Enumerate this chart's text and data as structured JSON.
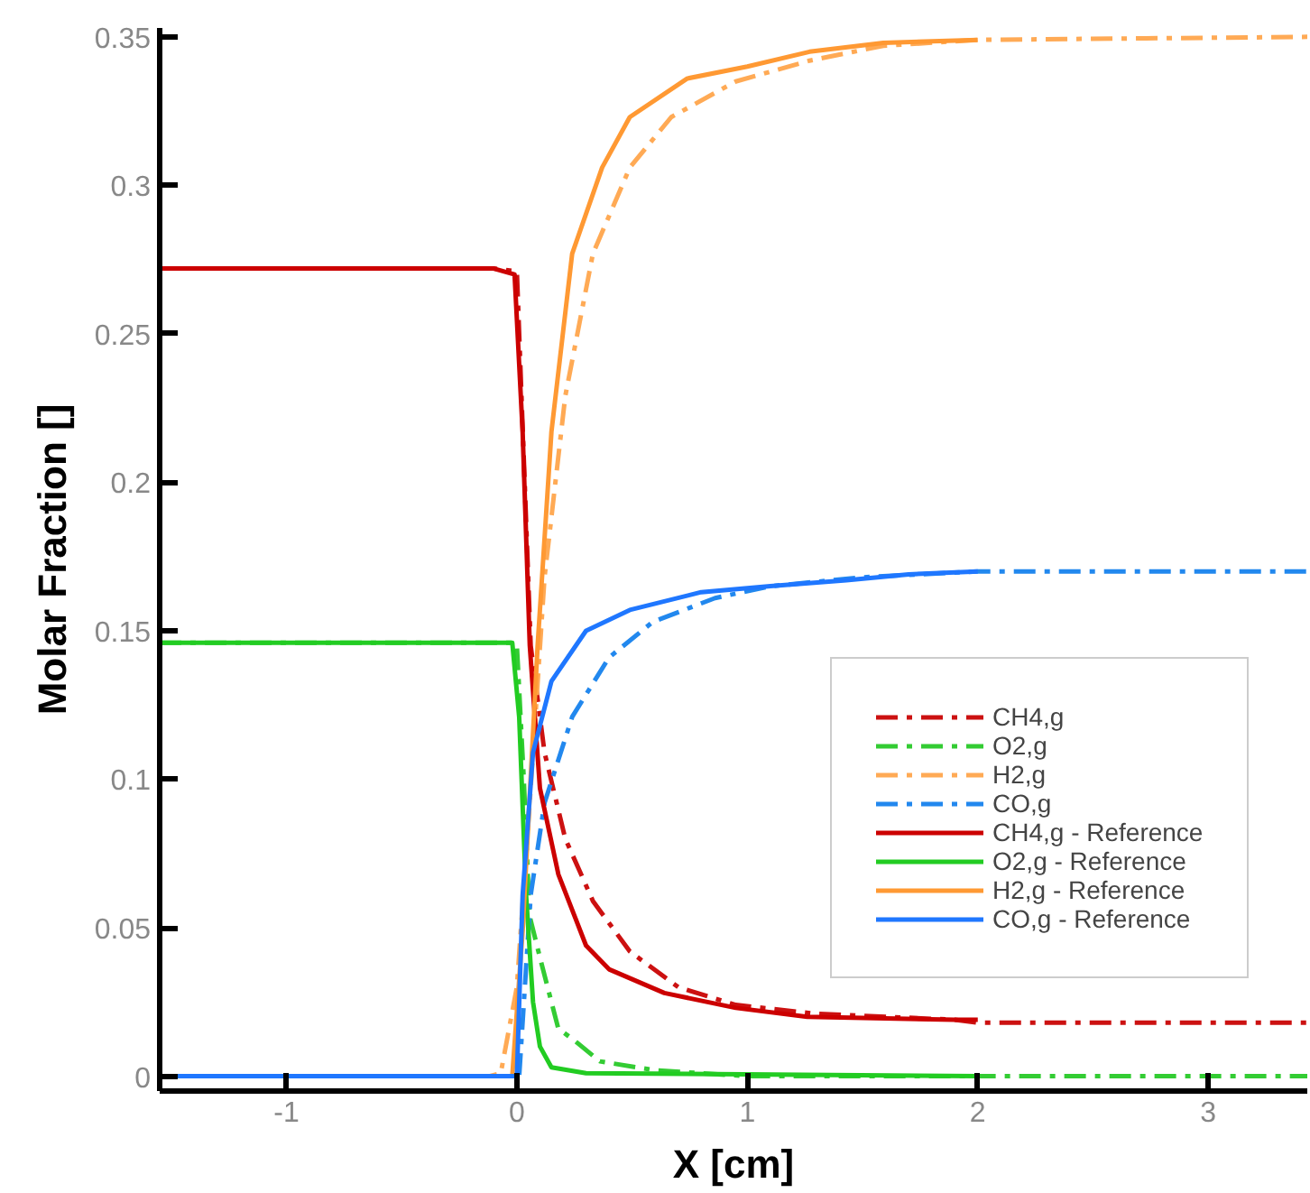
{
  "chart_data": {
    "type": "line",
    "xlabel": "X [cm]",
    "ylabel": "Molar Fraction []",
    "xlim": [
      -1.55,
      3.43
    ],
    "ylim": [
      -0.005,
      0.353
    ],
    "xticks": [
      -1,
      0,
      1,
      2,
      3
    ],
    "yticks": [
      0,
      0.05,
      0.1,
      0.15,
      0.2,
      0.25,
      0.3,
      0.35
    ],
    "grid": false,
    "legend": "bottom right",
    "marker": "none",
    "series": [
      {
        "name": "CH4,g",
        "color": "#cc1111",
        "line_style": "dashdot",
        "x": [
          -1.55,
          -0.1,
          0,
          0.06,
          0.12,
          0.21,
          0.33,
          0.49,
          0.7,
          0.95,
          1.3,
          1.9,
          2.0,
          3.43
        ],
        "values": [
          0.272,
          0.272,
          0.271,
          0.145,
          0.109,
          0.08,
          0.059,
          0.042,
          0.03,
          0.024,
          0.021,
          0.019,
          0.018,
          0.018
        ]
      },
      {
        "name": "O2,g",
        "color": "#33cc33",
        "line_style": "dashdot",
        "x": [
          -1.55,
          -0.02,
          0,
          0.03,
          0.055,
          0.1,
          0.18,
          0.25,
          0.36,
          0.6,
          1.0,
          3.43
        ],
        "values": [
          0.146,
          0.146,
          0.145,
          0.1,
          0.054,
          0.04,
          0.016,
          0.012,
          0.005,
          0.002,
          0,
          0
        ]
      },
      {
        "name": "H2,g",
        "color": "#ffaa55",
        "line_style": "dashdot",
        "x": [
          -1.55,
          -0.12,
          -0.07,
          0,
          0.06,
          0.12,
          0.21,
          0.33,
          0.49,
          0.67,
          0.95,
          1.27,
          1.59,
          2.0,
          3.43
        ],
        "values": [
          0,
          0,
          0.001,
          0.03,
          0.097,
          0.168,
          0.229,
          0.277,
          0.306,
          0.323,
          0.335,
          0.342,
          0.347,
          0.349,
          0.35
        ]
      },
      {
        "name": "CO,g",
        "color": "#2288ee",
        "line_style": "dashdot",
        "x": [
          -1.55,
          0.01,
          0.06,
          0.12,
          0.24,
          0.4,
          0.59,
          0.86,
          1.1,
          1.5,
          2.0,
          3.43
        ],
        "values": [
          0,
          0,
          0.061,
          0.092,
          0.121,
          0.141,
          0.153,
          0.161,
          0.165,
          0.168,
          0.17,
          0.17
        ]
      },
      {
        "name": "CH4,g - Reference",
        "color": "#cc0000",
        "line_style": "solid",
        "x": [
          -1.55,
          -0.1,
          -0.01,
          0.025,
          0.056,
          0.1,
          0.18,
          0.3,
          0.4,
          0.64,
          0.95,
          1.26,
          1.9,
          2.0
        ],
        "values": [
          0.272,
          0.272,
          0.27,
          0.217,
          0.145,
          0.097,
          0.068,
          0.044,
          0.036,
          0.028,
          0.023,
          0.02,
          0.019,
          0.019
        ]
      },
      {
        "name": "O2,g - Reference",
        "color": "#22cc22",
        "line_style": "solid",
        "x": [
          -1.55,
          -0.02,
          0.01,
          0.04,
          0.07,
          0.1,
          0.15,
          0.3,
          2.0
        ],
        "values": [
          0.146,
          0.146,
          0.121,
          0.061,
          0.025,
          0.01,
          0.003,
          0.001,
          0
        ]
      },
      {
        "name": "H2,g - Reference",
        "color": "#ff9933",
        "line_style": "solid",
        "x": [
          -1.55,
          -0.02,
          0.025,
          0.09,
          0.15,
          0.24,
          0.37,
          0.49,
          0.74,
          1.0,
          1.27,
          1.59,
          2.0
        ],
        "values": [
          0,
          0,
          0.049,
          0.145,
          0.217,
          0.277,
          0.306,
          0.323,
          0.336,
          0.34,
          0.345,
          0.348,
          0.349
        ]
      },
      {
        "name": "CO,g - Reference",
        "color": "#1f77ff",
        "line_style": "solid",
        "x": [
          -1.55,
          0,
          0.025,
          0.07,
          0.15,
          0.3,
          0.49,
          0.8,
          1.1,
          1.43,
          1.7,
          2.0
        ],
        "values": [
          0,
          0,
          0.061,
          0.109,
          0.133,
          0.15,
          0.157,
          0.163,
          0.165,
          0.167,
          0.169,
          0.17
        ]
      }
    ]
  }
}
